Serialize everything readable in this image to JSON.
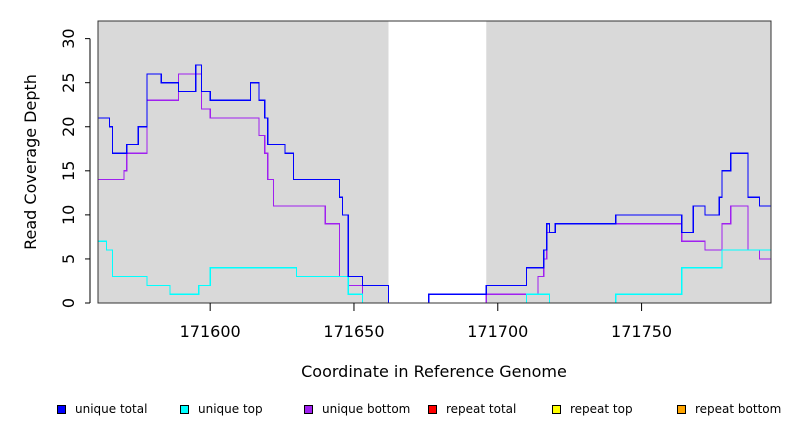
{
  "chart_data": {
    "type": "line",
    "title": "",
    "xlabel": "Coordinate in Reference Genome",
    "ylabel": "Read Coverage Depth",
    "xlim": [
      171561,
      171795
    ],
    "ylim": [
      0,
      32
    ],
    "x_ticks": [
      171600,
      171650,
      171700,
      171750
    ],
    "x_tick_labels": [
      "171600",
      "171650",
      "171700",
      "171750"
    ],
    "y_ticks": [
      0,
      5,
      10,
      15,
      20,
      25,
      30
    ],
    "y_tick_labels": [
      "0",
      "5",
      "10",
      "15",
      "20",
      "25",
      "30"
    ],
    "grid": false,
    "shaded_regions": [
      {
        "x": [
          171561,
          171662
        ],
        "color": "#d9d9d9"
      },
      {
        "x": [
          171696,
          171795
        ],
        "color": "#d9d9d9"
      }
    ],
    "legend_position": "bottom",
    "legend": [
      {
        "label": "unique total",
        "color": "#0000ff"
      },
      {
        "label": "unique top",
        "color": "#00ffff"
      },
      {
        "label": "unique bottom",
        "color": "#a020f0"
      },
      {
        "label": "repeat total",
        "color": "#ff0000"
      },
      {
        "label": "repeat top",
        "color": "#ffff00"
      },
      {
        "label": "repeat bottom",
        "color": "#ffa500"
      }
    ],
    "series": [
      {
        "name": "unique total",
        "color": "#0000ff",
        "x": [
          171561,
          171565,
          171566,
          171570,
          171571,
          171575,
          171577,
          171578,
          171583,
          171586,
          171589,
          171595,
          171597,
          171600,
          171614,
          171617,
          171618,
          171619,
          171620,
          171626,
          171629,
          171640,
          171645,
          171646,
          171648,
          171653,
          171662,
          171676,
          171696,
          171710,
          171714,
          171716,
          171717,
          171718,
          171720,
          171741,
          171764,
          171768,
          171772,
          171777,
          171778,
          171781,
          171787,
          171791,
          171795
        ],
        "y": [
          21,
          20,
          17,
          17,
          18,
          20,
          20,
          26,
          25,
          25,
          24,
          27,
          24,
          23,
          25,
          23,
          23,
          21,
          18,
          17,
          14,
          14,
          12,
          10,
          3,
          2,
          0,
          1,
          2,
          4,
          4,
          6,
          9,
          8,
          9,
          10,
          8,
          11,
          10,
          12,
          15,
          17,
          12,
          11,
          11
        ]
      },
      {
        "name": "unique top",
        "color": "#00ffff",
        "x": [
          171561,
          171564,
          171566,
          171578,
          171586,
          171593,
          171596,
          171600,
          171630,
          171645,
          171648,
          171653,
          171696,
          171710,
          171718,
          171741,
          171764,
          171778,
          171790,
          171795
        ],
        "y": [
          7,
          6,
          3,
          2,
          1,
          1,
          2,
          4,
          3,
          3,
          1,
          0,
          0,
          1,
          0,
          1,
          4,
          6,
          6,
          6
        ]
      },
      {
        "name": "unique bottom",
        "color": "#a020f0",
        "x": [
          171561,
          171570,
          171571,
          171575,
          171578,
          171586,
          171589,
          171595,
          171597,
          171600,
          171614,
          171617,
          171618,
          171619,
          171620,
          171622,
          171626,
          171629,
          171640,
          171645,
          171648,
          171653,
          171696,
          171710,
          171714,
          171716,
          171717,
          171720,
          171741,
          171764,
          171768,
          171772,
          171777,
          171778,
          171781,
          171787,
          171791,
          171795
        ],
        "y": [
          14,
          15,
          17,
          17,
          23,
          23,
          26,
          26,
          22,
          21,
          21,
          19,
          19,
          17,
          14,
          11,
          11,
          11,
          9,
          3,
          2,
          0,
          1,
          1,
          3,
          5,
          8,
          9,
          9,
          7,
          7,
          6,
          6,
          9,
          11,
          6,
          5,
          5
        ]
      },
      {
        "name": "repeat total",
        "color": "#ff0000",
        "x": [
          171561,
          171795
        ],
        "y": [
          0,
          0
        ]
      },
      {
        "name": "repeat top",
        "color": "#ffff00",
        "x": [
          171561,
          171795
        ],
        "y": [
          0,
          0
        ]
      },
      {
        "name": "repeat bottom",
        "color": "#ffa500",
        "x": [
          171561,
          171795
        ],
        "y": [
          0,
          0
        ]
      }
    ]
  }
}
